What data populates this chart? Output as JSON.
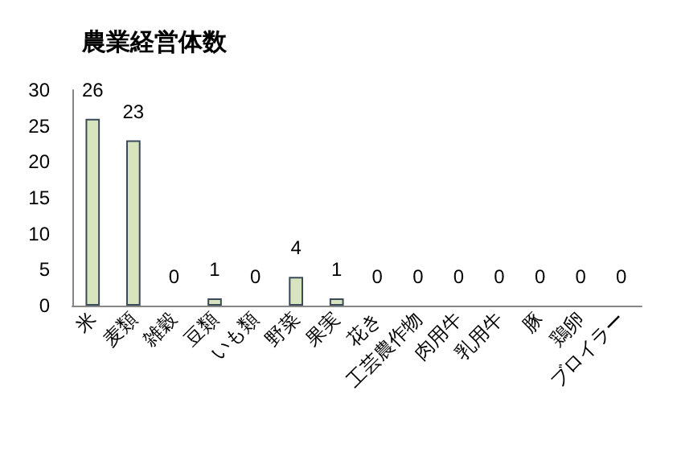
{
  "chart_data": {
    "type": "bar",
    "title": "農業経営体数",
    "categories": [
      "米",
      "麦類",
      "雑穀",
      "豆類",
      "いも類",
      "野菜",
      "果実",
      "花き",
      "工芸農作物",
      "肉用牛",
      "乳用牛",
      "豚",
      "鶏卵",
      "ブロイラー"
    ],
    "values": [
      26,
      23,
      0,
      1,
      0,
      4,
      1,
      0,
      0,
      0,
      0,
      0,
      0,
      0
    ],
    "color": "#d7e4bd",
    "ylim": [
      0,
      30
    ],
    "yticks": [
      0,
      5,
      10,
      15,
      20,
      25,
      30
    ],
    "grid": false,
    "data_labels": true
  }
}
